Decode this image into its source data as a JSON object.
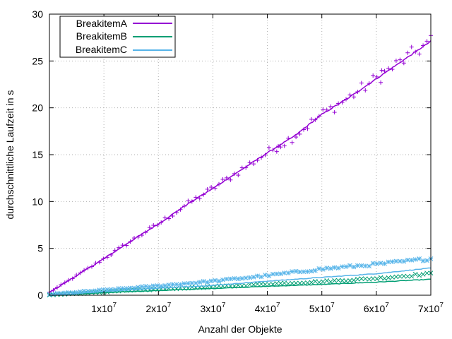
{
  "chart_data": {
    "type": "line",
    "title": "",
    "xlabel": "Anzahl der Objekte",
    "ylabel": "durchschnittliche Laufzeit in s",
    "xlim": [
      0,
      70000000
    ],
    "ylim": [
      0,
      30
    ],
    "x_ticks": [
      {
        "value": 10000000,
        "mantissa": "1",
        "exponent": "7"
      },
      {
        "value": 20000000,
        "mantissa": "2",
        "exponent": "7"
      },
      {
        "value": 30000000,
        "mantissa": "3",
        "exponent": "7"
      },
      {
        "value": 40000000,
        "mantissa": "4",
        "exponent": "7"
      },
      {
        "value": 50000000,
        "mantissa": "5",
        "exponent": "7"
      },
      {
        "value": 60000000,
        "mantissa": "6",
        "exponent": "7"
      },
      {
        "value": 70000000,
        "mantissa": "7",
        "exponent": "7"
      }
    ],
    "y_ticks": [
      "0",
      "5",
      "10",
      "15",
      "20",
      "25",
      "30"
    ],
    "grid": true,
    "legend_position": "top-left",
    "series": [
      {
        "name": "BreakitemA",
        "color": "#9400d3",
        "marker": "plus",
        "x": [
          0,
          5000000,
          10000000,
          15000000,
          20000000,
          25000000,
          30000000,
          35000000,
          40000000,
          45000000,
          50000000,
          55000000,
          60000000,
          65000000,
          70000000
        ],
        "values": [
          0.3,
          2.1,
          3.9,
          5.8,
          7.6,
          9.6,
          11.4,
          13.3,
          15.2,
          17.0,
          19.3,
          21.1,
          23.1,
          25.1,
          27.1
        ],
        "outliers": [
          {
            "x": 42000000,
            "y": 15.9
          },
          {
            "x": 61000000,
            "y": 24.0
          }
        ]
      },
      {
        "name": "BreakitemB",
        "color": "#009e73",
        "marker": "cross",
        "x": [
          0,
          10000000,
          20000000,
          30000000,
          40000000,
          50000000,
          60000000,
          70000000
        ],
        "values": [
          0.0,
          0.27,
          0.5,
          0.72,
          0.95,
          1.15,
          1.4,
          1.7
        ],
        "marker_values": [
          0.0,
          0.35,
          0.65,
          0.9,
          1.2,
          1.45,
          1.8,
          2.3
        ]
      },
      {
        "name": "BreakitemC",
        "color": "#56b4e9",
        "marker": "star",
        "x": [
          0,
          10000000,
          20000000,
          30000000,
          40000000,
          50000000,
          60000000,
          70000000
        ],
        "values": [
          0.0,
          0.4,
          0.75,
          1.05,
          1.5,
          1.9,
          2.3,
          2.9
        ],
        "marker_values": [
          0.1,
          0.55,
          1.0,
          1.5,
          2.1,
          2.8,
          3.3,
          3.9
        ]
      }
    ]
  }
}
